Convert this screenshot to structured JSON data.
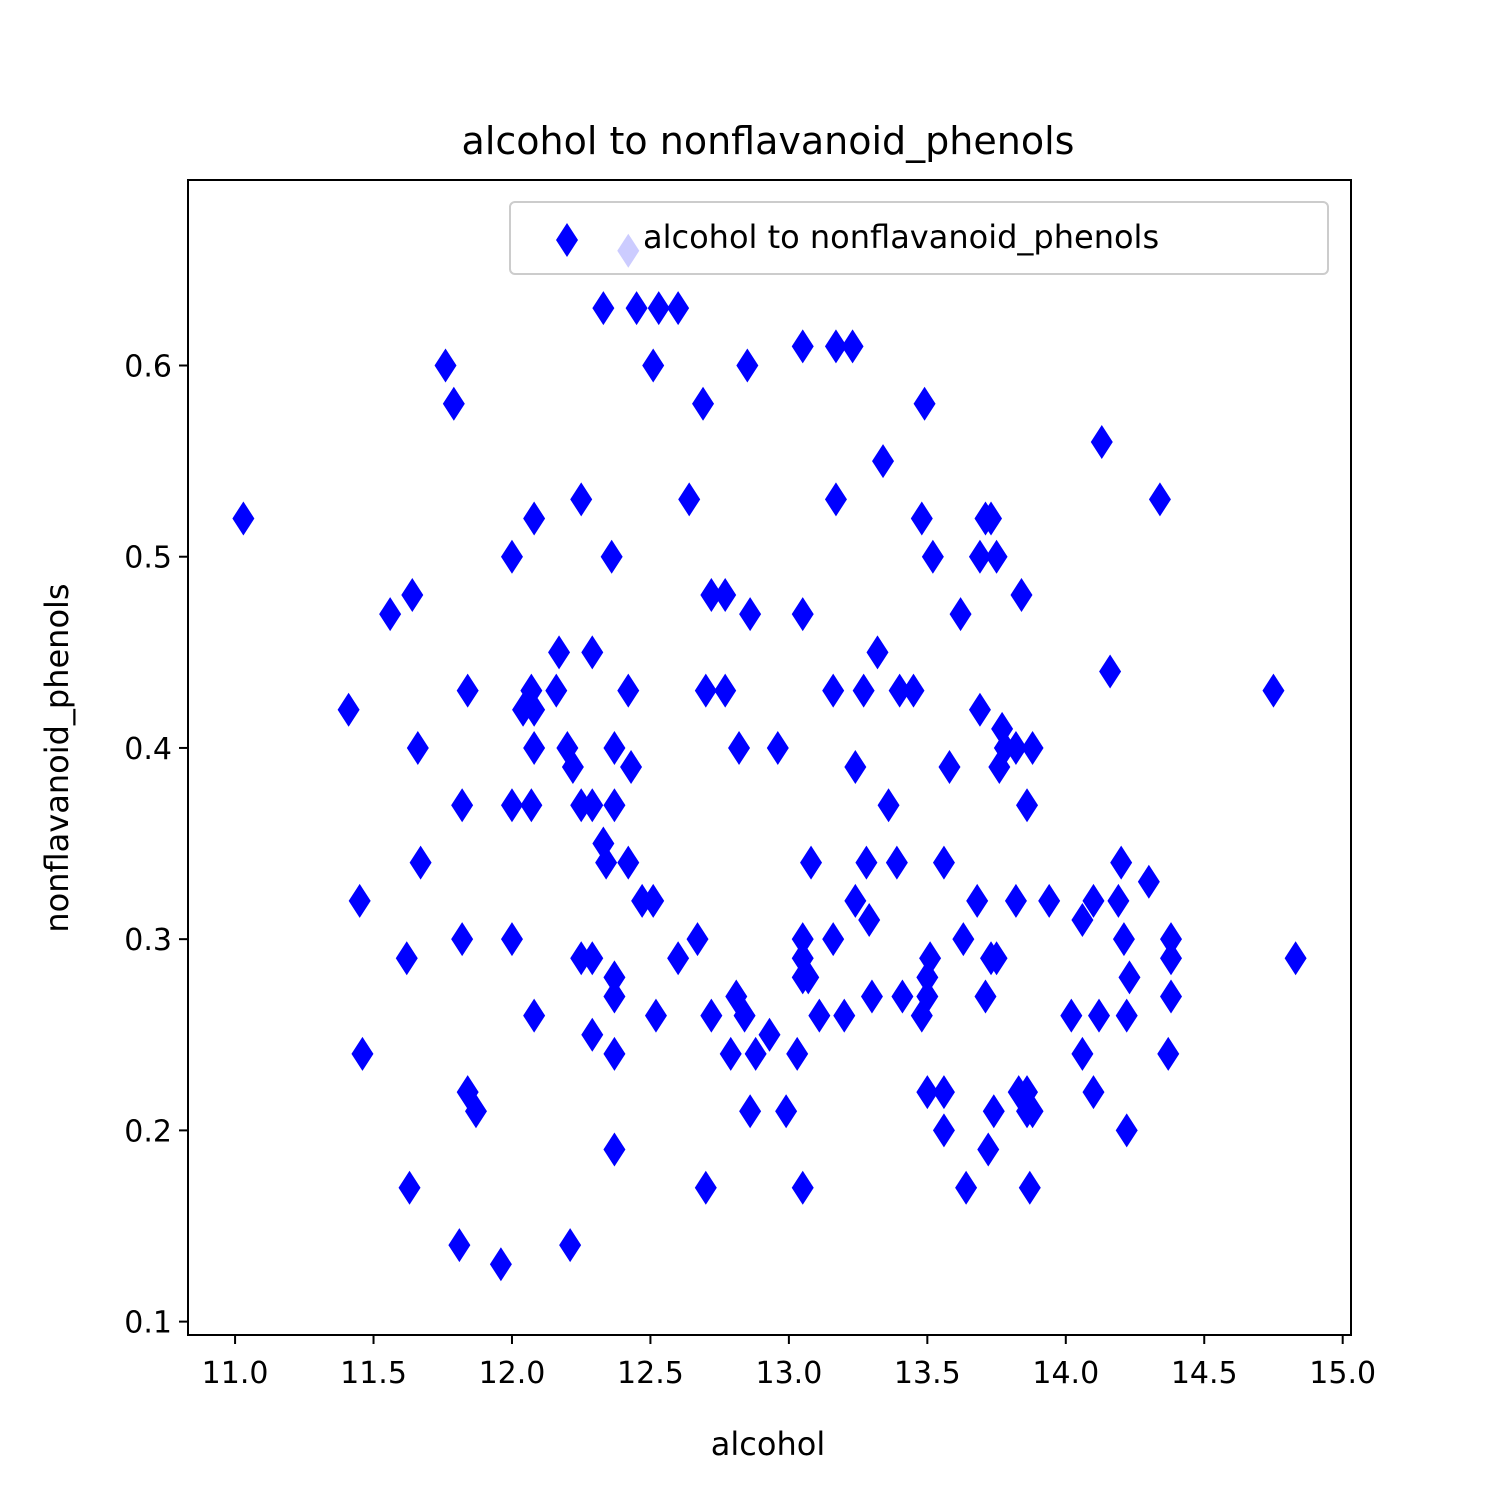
{
  "chart_data": {
    "type": "scatter",
    "title": "alcohol to nonflavanoid_phenols",
    "xlabel": "alcohol",
    "ylabel": "nonflavanoid_phenols",
    "xlim": [
      10.83,
      15.03
    ],
    "ylim": [
      0.093,
      0.697
    ],
    "xticks": [
      "11.0",
      "11.5",
      "12.0",
      "12.5",
      "13.0",
      "13.5",
      "14.0",
      "14.5",
      "15.0"
    ],
    "yticks": [
      "0.1",
      "0.2",
      "0.3",
      "0.4",
      "0.5",
      "0.6"
    ],
    "grid": false,
    "legend_position": "top-right",
    "marker": "thin-diamond",
    "series": [
      {
        "name": "alcohol to nonflavanoid_phenols",
        "color": "#0000ff",
        "points": [
          [
            11.03,
            0.52
          ],
          [
            11.41,
            0.42
          ],
          [
            11.45,
            0.32
          ],
          [
            11.46,
            0.24
          ],
          [
            11.56,
            0.47
          ],
          [
            11.62,
            0.29
          ],
          [
            11.63,
            0.17
          ],
          [
            11.64,
            0.48
          ],
          [
            11.66,
            0.4
          ],
          [
            11.67,
            0.34
          ],
          [
            11.76,
            0.6
          ],
          [
            11.79,
            0.58
          ],
          [
            11.81,
            0.14
          ],
          [
            11.82,
            0.3
          ],
          [
            11.82,
            0.37
          ],
          [
            11.84,
            0.43
          ],
          [
            11.84,
            0.22
          ],
          [
            11.87,
            0.21
          ],
          [
            11.96,
            0.13
          ],
          [
            12.0,
            0.5
          ],
          [
            12.0,
            0.3
          ],
          [
            12.0,
            0.37
          ],
          [
            12.04,
            0.42
          ],
          [
            12.07,
            0.37
          ],
          [
            12.07,
            0.43
          ],
          [
            12.08,
            0.4
          ],
          [
            12.08,
            0.42
          ],
          [
            12.08,
            0.26
          ],
          [
            12.08,
            0.52
          ],
          [
            12.16,
            0.43
          ],
          [
            12.17,
            0.45
          ],
          [
            12.2,
            0.4
          ],
          [
            12.21,
            0.14
          ],
          [
            12.22,
            0.39
          ],
          [
            12.25,
            0.53
          ],
          [
            12.25,
            0.37
          ],
          [
            12.25,
            0.29
          ],
          [
            12.29,
            0.45
          ],
          [
            12.29,
            0.37
          ],
          [
            12.29,
            0.29
          ],
          [
            12.29,
            0.25
          ],
          [
            12.33,
            0.63
          ],
          [
            12.33,
            0.35
          ],
          [
            12.34,
            0.34
          ],
          [
            12.36,
            0.5
          ],
          [
            12.37,
            0.28
          ],
          [
            12.37,
            0.19
          ],
          [
            12.37,
            0.4
          ],
          [
            12.37,
            0.24
          ],
          [
            12.37,
            0.37
          ],
          [
            12.37,
            0.27
          ],
          [
            12.42,
            0.66
          ],
          [
            12.42,
            0.43
          ],
          [
            12.42,
            0.34
          ],
          [
            12.43,
            0.39
          ],
          [
            12.45,
            0.63
          ],
          [
            12.47,
            0.32
          ],
          [
            12.51,
            0.6
          ],
          [
            12.51,
            0.32
          ],
          [
            12.52,
            0.26
          ],
          [
            12.53,
            0.63
          ],
          [
            12.6,
            0.29
          ],
          [
            12.6,
            0.63
          ],
          [
            12.64,
            0.53
          ],
          [
            12.67,
            0.3
          ],
          [
            12.69,
            0.58
          ],
          [
            12.7,
            0.43
          ],
          [
            12.7,
            0.17
          ],
          [
            12.72,
            0.48
          ],
          [
            12.72,
            0.26
          ],
          [
            12.77,
            0.48
          ],
          [
            12.77,
            0.43
          ],
          [
            12.79,
            0.24
          ],
          [
            12.81,
            0.27
          ],
          [
            12.82,
            0.4
          ],
          [
            12.84,
            0.26
          ],
          [
            12.85,
            0.6
          ],
          [
            12.86,
            0.47
          ],
          [
            12.86,
            0.21
          ],
          [
            12.88,
            0.24
          ],
          [
            12.93,
            0.25
          ],
          [
            12.96,
            0.4
          ],
          [
            12.99,
            0.21
          ],
          [
            13.03,
            0.24
          ],
          [
            13.05,
            0.61
          ],
          [
            13.05,
            0.47
          ],
          [
            13.05,
            0.3
          ],
          [
            13.05,
            0.29
          ],
          [
            13.05,
            0.28
          ],
          [
            13.05,
            0.17
          ],
          [
            13.07,
            0.28
          ],
          [
            13.08,
            0.34
          ],
          [
            13.11,
            0.26
          ],
          [
            13.16,
            0.43
          ],
          [
            13.16,
            0.3
          ],
          [
            13.17,
            0.53
          ],
          [
            13.17,
            0.61
          ],
          [
            13.2,
            0.26
          ],
          [
            13.23,
            0.61
          ],
          [
            13.24,
            0.39
          ],
          [
            13.24,
            0.32
          ],
          [
            13.27,
            0.43
          ],
          [
            13.28,
            0.34
          ],
          [
            13.29,
            0.31
          ],
          [
            13.3,
            0.27
          ],
          [
            13.32,
            0.45
          ],
          [
            13.34,
            0.55
          ],
          [
            13.36,
            0.37
          ],
          [
            13.39,
            0.34
          ],
          [
            13.4,
            0.43
          ],
          [
            13.41,
            0.27
          ],
          [
            13.45,
            0.43
          ],
          [
            13.48,
            0.26
          ],
          [
            13.48,
            0.52
          ],
          [
            13.49,
            0.58
          ],
          [
            13.5,
            0.27
          ],
          [
            13.5,
            0.28
          ],
          [
            13.5,
            0.22
          ],
          [
            13.51,
            0.29
          ],
          [
            13.52,
            0.5
          ],
          [
            13.56,
            0.22
          ],
          [
            13.56,
            0.34
          ],
          [
            13.56,
            0.2
          ],
          [
            13.58,
            0.39
          ],
          [
            13.62,
            0.47
          ],
          [
            13.63,
            0.3
          ],
          [
            13.64,
            0.17
          ],
          [
            13.68,
            0.32
          ],
          [
            13.69,
            0.5
          ],
          [
            13.69,
            0.42
          ],
          [
            13.71,
            0.52
          ],
          [
            13.71,
            0.27
          ],
          [
            13.72,
            0.19
          ],
          [
            13.73,
            0.29
          ],
          [
            13.73,
            0.52
          ],
          [
            13.74,
            0.21
          ],
          [
            13.75,
            0.5
          ],
          [
            13.75,
            0.29
          ],
          [
            13.76,
            0.39
          ],
          [
            13.77,
            0.41
          ],
          [
            13.78,
            0.4
          ],
          [
            13.82,
            0.32
          ],
          [
            13.82,
            0.4
          ],
          [
            13.83,
            0.22
          ],
          [
            13.84,
            0.48
          ],
          [
            13.86,
            0.22
          ],
          [
            13.86,
            0.21
          ],
          [
            13.86,
            0.37
          ],
          [
            13.87,
            0.17
          ],
          [
            13.88,
            0.4
          ],
          [
            13.88,
            0.21
          ],
          [
            13.94,
            0.32
          ],
          [
            14.02,
            0.26
          ],
          [
            14.06,
            0.31
          ],
          [
            14.06,
            0.24
          ],
          [
            14.1,
            0.22
          ],
          [
            14.1,
            0.32
          ],
          [
            14.12,
            0.26
          ],
          [
            14.13,
            0.56
          ],
          [
            14.16,
            0.44
          ],
          [
            14.19,
            0.32
          ],
          [
            14.2,
            0.34
          ],
          [
            14.21,
            0.3
          ],
          [
            14.22,
            0.26
          ],
          [
            14.22,
            0.2
          ],
          [
            14.23,
            0.28
          ],
          [
            14.3,
            0.33
          ],
          [
            14.34,
            0.53
          ],
          [
            14.37,
            0.24
          ],
          [
            14.38,
            0.29
          ],
          [
            14.38,
            0.3
          ],
          [
            14.38,
            0.27
          ],
          [
            14.75,
            0.43
          ],
          [
            14.83,
            0.29
          ]
        ]
      }
    ]
  }
}
